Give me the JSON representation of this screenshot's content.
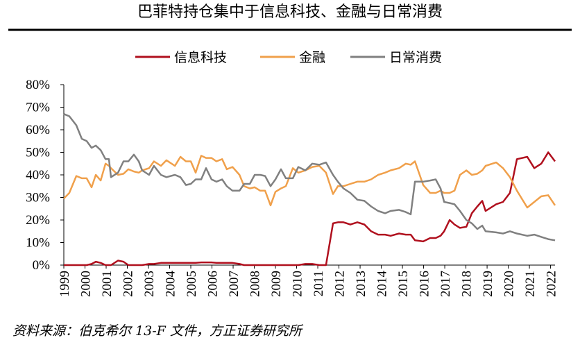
{
  "chart_data": {
    "type": "line",
    "title": "巴菲特持仓集中于信息科技、金融与日常消费",
    "source": "资料来源：伯克希尔 13-F 文件，方正证券研究所",
    "x": [
      1999.0,
      1999.26,
      1999.59,
      1999.85,
      2000.08,
      2000.31,
      2000.51,
      2000.74,
      2000.97,
      2001.13,
      2001.23,
      2001.56,
      2001.82,
      2002.05,
      2002.31,
      2002.54,
      2002.7,
      2003.03,
      2003.26,
      2003.59,
      2003.85,
      2004.25,
      2004.51,
      2004.77,
      2005.0,
      2005.23,
      2005.49,
      2005.72,
      2005.98,
      2006.21,
      2006.48,
      2006.7,
      2006.97,
      2007.3,
      2007.52,
      2007.79,
      2008.02,
      2008.28,
      2008.51,
      2008.77,
      2009.0,
      2009.26,
      2009.49,
      2009.82,
      2010.08,
      2010.41,
      2010.74,
      2011.07,
      2011.39,
      2011.72,
      2011.95,
      2012.21,
      2012.54,
      2012.87,
      2013.2,
      2013.52,
      2013.85,
      2014.18,
      2014.44,
      2014.84,
      2015.16,
      2015.39,
      2015.59,
      2015.98,
      2016.31,
      2016.57,
      2016.8,
      2016.97,
      2017.23,
      2017.46,
      2017.72,
      2018.02,
      2018.28,
      2018.54,
      2018.77,
      2018.93,
      2019.43,
      2019.75,
      2020.08,
      2020.41,
      2020.9,
      2021.23,
      2021.56,
      2021.89,
      2022.21
    ],
    "series": [
      {
        "name": "信息科技",
        "color": "#b0101e",
        "values": [
          0,
          0,
          0,
          0,
          0,
          0.5,
          1.5,
          1,
          0,
          0,
          0,
          2,
          1.5,
          0,
          0,
          0,
          0,
          0.5,
          0.5,
          1,
          1,
          1,
          1,
          1,
          1,
          1,
          1.2,
          1.2,
          1.2,
          1,
          1,
          1,
          1,
          0.5,
          0,
          0,
          0,
          0,
          0,
          0,
          0,
          0,
          0,
          0,
          0,
          0.5,
          0.5,
          0,
          0,
          18.5,
          19,
          19,
          18,
          19,
          18,
          15,
          13.5,
          13.5,
          13,
          14,
          13.5,
          13.5,
          11,
          10.5,
          12,
          12,
          13,
          15,
          20,
          18,
          16.5,
          17,
          23,
          26,
          28.5,
          24,
          27,
          28,
          32,
          47,
          48,
          43,
          45,
          50,
          46
        ]
      },
      {
        "name": "金融",
        "color": "#f0a04b",
        "values": [
          29.5,
          32,
          39.5,
          38.5,
          38.5,
          34.5,
          40,
          37.5,
          45,
          44,
          43,
          40,
          40.5,
          42.5,
          41.5,
          41,
          42,
          43,
          46,
          44,
          46.5,
          44,
          48,
          46,
          46,
          41,
          48.5,
          47.5,
          47.5,
          46,
          47,
          42.5,
          43.5,
          40,
          35,
          34,
          34.5,
          33,
          33,
          26.5,
          32.5,
          34,
          35,
          43,
          41,
          42,
          43.5,
          44,
          41,
          31.5,
          35,
          35,
          36,
          37,
          37,
          38,
          40,
          41,
          42,
          43,
          45,
          44.5,
          46,
          35.5,
          32,
          32,
          33,
          32,
          32,
          33,
          40,
          42,
          40,
          40.5,
          42,
          44,
          45.5,
          43,
          39,
          33,
          25.5,
          28,
          30.5,
          31,
          26.5
        ]
      },
      {
        "name": "日常消费",
        "color": "#808080",
        "values": [
          67,
          66,
          62,
          56,
          55,
          52,
          53,
          51,
          47,
          47,
          39,
          41,
          46,
          46,
          49,
          46,
          42,
          40,
          44,
          40,
          39,
          40,
          39,
          35.5,
          36,
          38,
          38,
          43,
          38,
          37,
          38,
          35,
          33,
          33,
          36,
          36,
          40,
          40,
          39.5,
          35,
          38,
          42.5,
          38.5,
          38.5,
          43.5,
          42,
          45,
          44.5,
          45.5,
          40,
          37,
          34,
          32,
          29,
          28.5,
          26,
          24,
          23,
          24,
          24.5,
          23.5,
          22.5,
          37,
          37,
          37.5,
          38,
          34,
          28,
          27.5,
          27,
          24,
          20,
          18.5,
          16,
          17.5,
          15,
          14.5,
          14,
          15,
          14,
          13,
          13.5,
          12.5,
          11.5,
          11
        ]
      }
    ],
    "xlim": [
      1999,
      2022.21
    ],
    "xticks": [
      1999,
      2000,
      2001,
      2002,
      2003,
      2004,
      2005,
      2006,
      2007,
      2008,
      2009,
      2010,
      2011,
      2012,
      2013,
      2014,
      2015,
      2016,
      2017,
      2018,
      2019,
      2020,
      2021,
      2022
    ],
    "ylim": [
      0,
      80
    ],
    "yticks": [
      {
        "value": 0,
        "label": "0%"
      },
      {
        "value": 10,
        "label": "10%"
      },
      {
        "value": 20,
        "label": "20%"
      },
      {
        "value": 30,
        "label": "30%"
      },
      {
        "value": 40,
        "label": "40%"
      },
      {
        "value": 50,
        "label": "50%"
      },
      {
        "value": 60,
        "label": "60%"
      },
      {
        "value": 70,
        "label": "70%"
      },
      {
        "value": 80,
        "label": "80%"
      }
    ],
    "legend": "top"
  }
}
